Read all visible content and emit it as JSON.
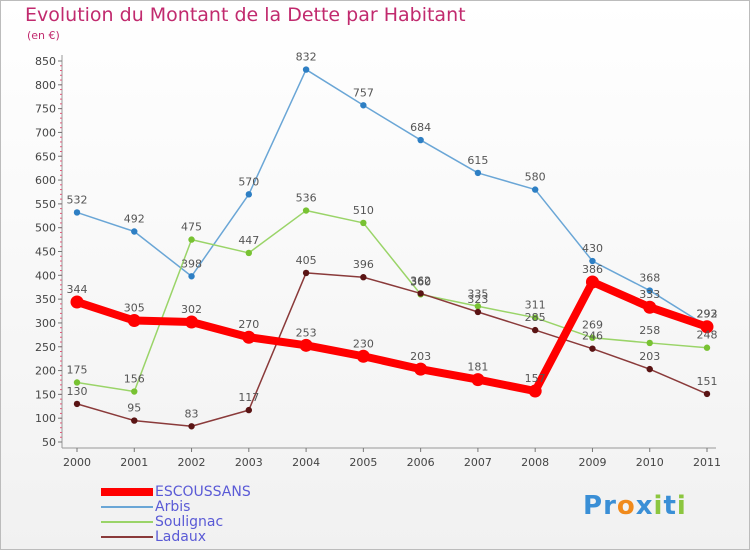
{
  "title": "Evolution du Montant de la Dette par Habitant",
  "subtitle": "(en €)",
  "logo": {
    "text": "Proxiti",
    "colors": [
      "#3a8fd6",
      "#3a8fd6",
      "#f08a1c",
      "#3a8fd6",
      "#8cc63f",
      "#3a8fd6",
      "#8cc63f"
    ]
  },
  "chart_data": {
    "type": "line",
    "title": "Evolution du Montant de la Dette par Habitant",
    "ylabel": "(en €)",
    "x": [
      "2000",
      "2001",
      "2002",
      "2003",
      "2004",
      "2005",
      "2006",
      "2007",
      "2008",
      "2009",
      "2010",
      "2011"
    ],
    "ylim": [
      50,
      850
    ],
    "yticks": [
      50,
      100,
      150,
      200,
      250,
      300,
      350,
      400,
      450,
      500,
      550,
      600,
      650,
      700,
      750,
      800,
      850
    ],
    "grid": false,
    "legend_position": "bottom-left",
    "series": [
      {
        "name": "ESCOUSSANS",
        "color": "#ff0000",
        "marker_color": "#ff0000",
        "emphasis": "bold",
        "values": [
          344,
          305,
          302,
          270,
          253,
          230,
          203,
          181,
          157,
          386,
          333,
          292
        ],
        "labels": [
          "344",
          "305",
          "302",
          "270",
          "253",
          "230",
          "203",
          "181",
          "157",
          "386",
          "333",
          "292"
        ]
      },
      {
        "name": "Arbis",
        "color": "#6aa6d6",
        "marker_color": "#2e7fc4",
        "values": [
          532,
          492,
          398,
          570,
          832,
          757,
          684,
          615,
          580,
          430,
          368,
          293
        ],
        "labels": [
          "532",
          "492",
          "398",
          "570",
          "832",
          "757",
          "684",
          "615",
          "580",
          "430",
          "368",
          "293"
        ]
      },
      {
        "name": "Soulignac",
        "color": "#9ad468",
        "marker_color": "#78c232",
        "values": [
          175,
          156,
          475,
          447,
          536,
          510,
          360,
          335,
          311,
          269,
          258,
          248
        ],
        "labels": [
          "175",
          "156",
          "475",
          "447",
          "536",
          "510",
          "360",
          "335",
          "311",
          "269",
          "258",
          "248"
        ]
      },
      {
        "name": "Ladaux",
        "color": "#8a3a3a",
        "marker_color": "#5a1414",
        "values": [
          130,
          95,
          83,
          117,
          405,
          396,
          362,
          323,
          285,
          246,
          203,
          151
        ],
        "labels": [
          "130",
          "95",
          "83",
          "117",
          "405",
          "396",
          "362",
          "323",
          "285",
          "246",
          "203",
          "151"
        ]
      }
    ]
  }
}
